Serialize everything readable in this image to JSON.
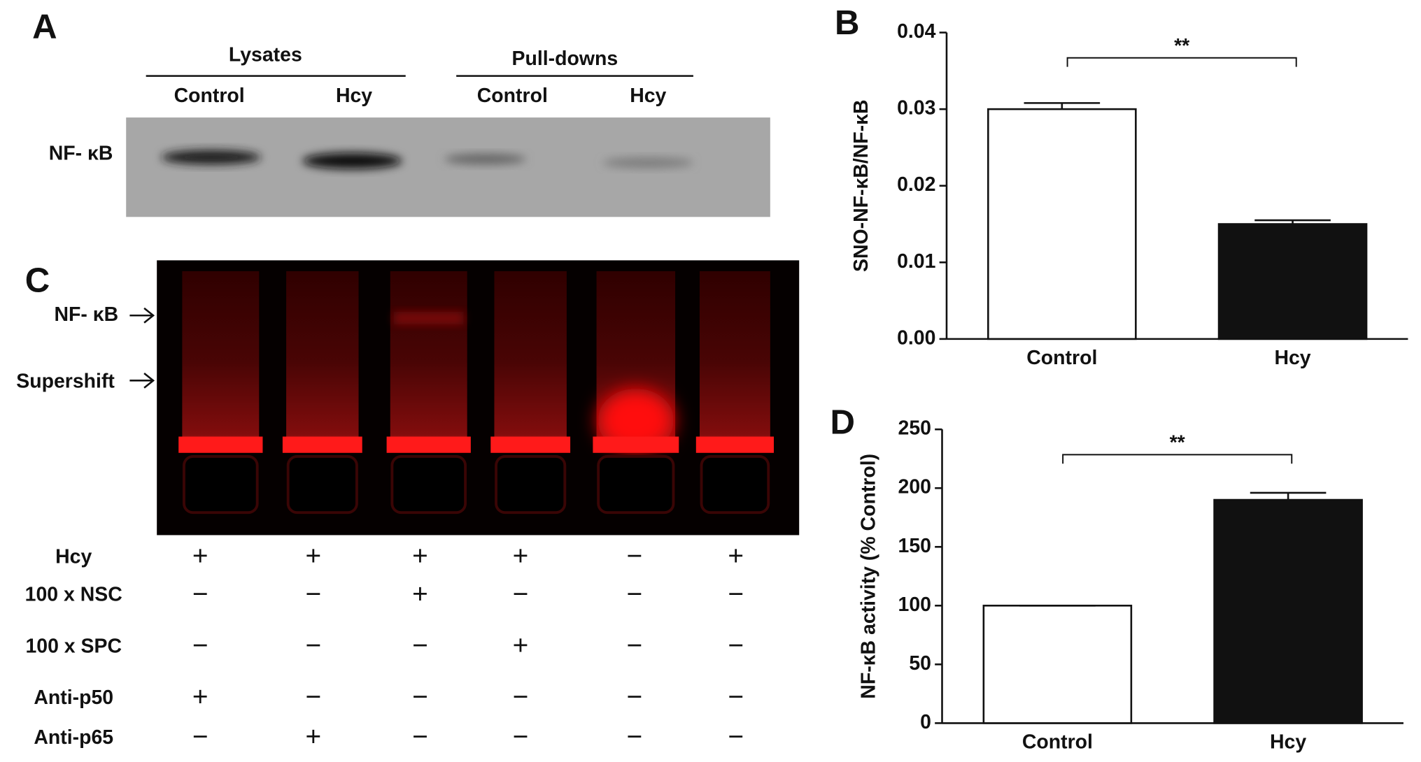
{
  "panel_a": {
    "label": "A",
    "groups": [
      "Lysates",
      "Pull-downs"
    ],
    "lanes": [
      "Control",
      "Hcy",
      "Control",
      "Hcy"
    ],
    "band_label": "NF- κB"
  },
  "panel_c": {
    "label": "C",
    "markers": [
      "NF- κB",
      "Supershift"
    ],
    "conditions": [
      {
        "name": "Hcy",
        "signs": [
          "+",
          "+",
          "+",
          "+",
          "−",
          "+"
        ]
      },
      {
        "name": "100 x NSC",
        "signs": [
          "−",
          "−",
          "+",
          "−",
          "−",
          "−"
        ]
      },
      {
        "name": "100 x SPC",
        "signs": [
          "−",
          "−",
          "−",
          "+",
          "−",
          "−"
        ]
      },
      {
        "name": "Anti-p50",
        "signs": [
          "+",
          "−",
          "−",
          "−",
          "−",
          "−"
        ]
      },
      {
        "name": "Anti-p65",
        "signs": [
          "−",
          "+",
          "−",
          "−",
          "−",
          "−"
        ]
      }
    ]
  },
  "chart_data": [
    {
      "panel_label": "B",
      "type": "bar",
      "y_label": "SNO-NF-κB/NF-κB",
      "categories": [
        "Control",
        "Hcy"
      ],
      "values": [
        0.03,
        0.015
      ],
      "errors": [
        0.0008,
        0.0005
      ],
      "colors": [
        "#ffffff",
        "#111111"
      ],
      "ylim": [
        0,
        0.04
      ],
      "yticks": [
        {
          "value": 0,
          "label": "0.00"
        },
        {
          "value": 0.01,
          "label": "0.01"
        },
        {
          "value": 0.02,
          "label": "0.02"
        },
        {
          "value": 0.03,
          "label": "0.03"
        },
        {
          "value": 0.04,
          "label": "0.04"
        }
      ],
      "significance": "**"
    },
    {
      "panel_label": "D",
      "type": "bar",
      "y_label": "NF-κB activity  (% Control)",
      "categories": [
        "Control",
        "Hcy"
      ],
      "values": [
        100,
        190
      ],
      "errors": [
        0,
        6
      ],
      "colors": [
        "#ffffff",
        "#111111"
      ],
      "ylim": [
        0,
        250
      ],
      "yticks": [
        0,
        50,
        100,
        150,
        200,
        250
      ],
      "significance": "**"
    }
  ]
}
